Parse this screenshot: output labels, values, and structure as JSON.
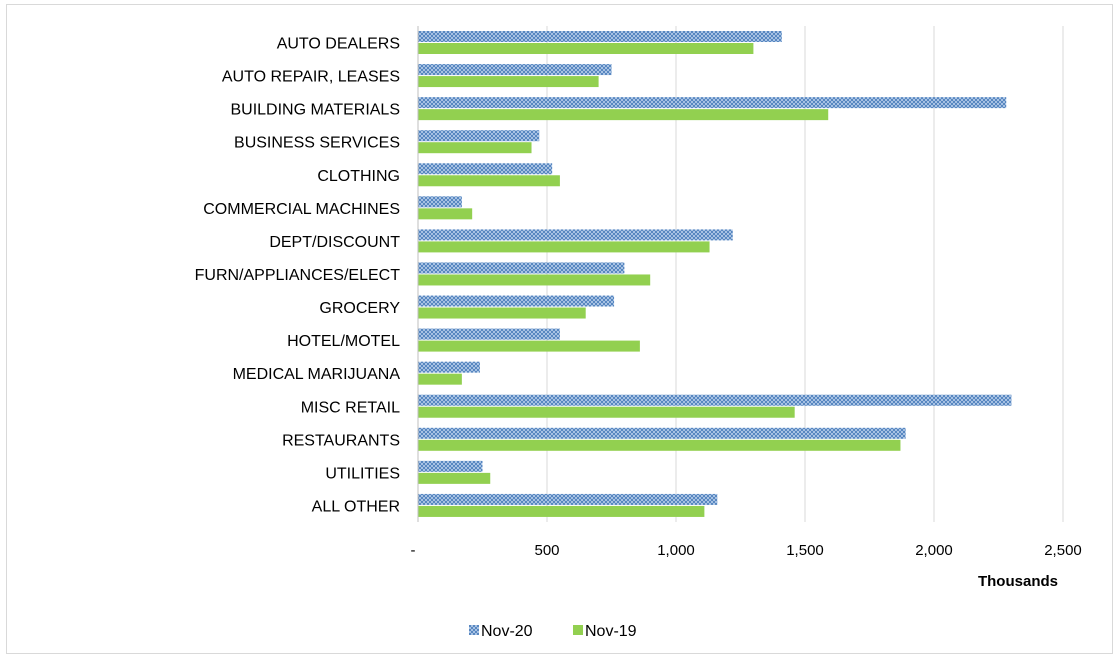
{
  "chart_data": {
    "type": "bar",
    "orientation": "horizontal",
    "categories": [
      "AUTO DEALERS",
      "AUTO REPAIR, LEASES",
      "BUILDING MATERIALS",
      "BUSINESS SERVICES",
      "CLOTHING",
      "COMMERCIAL MACHINES",
      "DEPT/DISCOUNT",
      "FURN/APPLIANCES/ELECT",
      "GROCERY",
      "HOTEL/MOTEL",
      "MEDICAL MARIJUANA",
      "MISC RETAIL",
      "RESTAURANTS",
      "UTILITIES",
      "ALL OTHER"
    ],
    "series": [
      {
        "name": "Nov-20",
        "color": "#5b8fd6",
        "pattern": "crosshatch",
        "values": [
          1410,
          750,
          2280,
          470,
          520,
          170,
          1220,
          800,
          760,
          550,
          240,
          2300,
          1890,
          250,
          1160
        ]
      },
      {
        "name": "Nov-19",
        "color": "#92d050",
        "pattern": "solid",
        "values": [
          1300,
          700,
          1590,
          440,
          550,
          210,
          1130,
          900,
          650,
          860,
          170,
          1460,
          1870,
          280,
          1110
        ]
      }
    ],
    "xlim": [
      0,
      2500
    ],
    "x_ticks": [
      "-",
      "500",
      "1,000",
      "1,500",
      "2,000",
      "2,500"
    ],
    "x_tick_values": [
      0,
      500,
      1000,
      1500,
      2000,
      2500
    ],
    "xlabel": "Thousands",
    "grid": "vertical",
    "legend": "bottom"
  }
}
